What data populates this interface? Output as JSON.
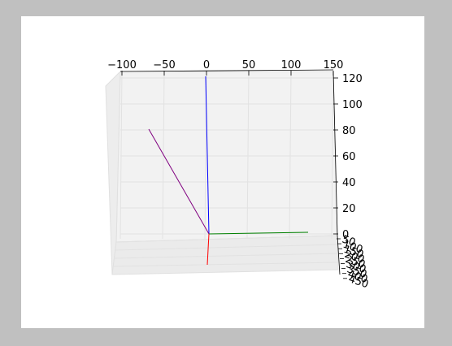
{
  "window": {
    "background": "#c0c0c0",
    "figure_background": "#ffffff"
  },
  "chart_data": {
    "type": "line",
    "projection": "3d",
    "grid": true,
    "pane_color": "#f2f2f2",
    "x_axis": {
      "range": [
        -100,
        150
      ],
      "ticks": [
        -100,
        -50,
        0,
        50,
        100,
        150
      ],
      "tick_labels": [
        "−100",
        "−50",
        "0",
        "50",
        "100",
        "150"
      ]
    },
    "z_axis": {
      "range": [
        0,
        120
      ],
      "ticks": [
        0,
        20,
        40,
        60,
        80,
        100,
        120
      ],
      "tick_labels": [
        "0",
        "20",
        "40",
        "60",
        "80",
        "100",
        "120"
      ]
    },
    "y_axis": {
      "tick_labels": [
        "50",
        "100",
        "150",
        "200",
        "250",
        "300",
        "350",
        "400",
        "450"
      ]
    },
    "series": [
      {
        "color": "#0000ff",
        "start": [
          0,
          0,
          0
        ],
        "end": [
          0,
          0,
          120
        ]
      },
      {
        "color": "#008000",
        "start": [
          0,
          0,
          0
        ],
        "end": [
          120,
          0,
          0
        ]
      },
      {
        "color": "#ff0000",
        "start": [
          0,
          0,
          0
        ],
        "end": [
          0,
          0,
          -25
        ]
      },
      {
        "color": "#800080",
        "start": [
          0,
          0,
          0
        ],
        "end": [
          -70,
          0,
          80
        ]
      }
    ]
  }
}
